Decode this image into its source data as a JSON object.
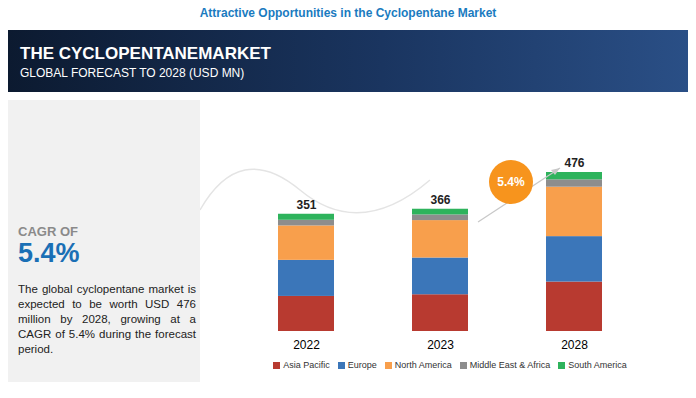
{
  "chart_data": {
    "type": "bar",
    "title": "Attractive Opportunities in the Cyclopentane Market",
    "banner_title": "THE CYCLOPENTANEMARKET",
    "subtitle": "GLOBAL FORECAST TO 2028 (USD MN)",
    "annotations": {
      "cagr_heading": "CAGR OF",
      "cagr_value": "5.4%",
      "description": "The global cyclopentane market is expected to be worth USD 476 million by 2028, growing at a CAGR of 5.4% during the forecast period.",
      "growth_bubble": "5.4%"
    },
    "stacked": true,
    "tick_labels": "x",
    "legend": "bottom",
    "categories": [
      "2022",
      "2023",
      "2028"
    ],
    "totals": [
      351,
      366,
      476
    ],
    "series": [
      {
        "name": "Asia Pacific",
        "color": "#b83a30",
        "values": [
          105,
          110,
          148
        ]
      },
      {
        "name": "Europe",
        "color": "#3b76b9",
        "values": [
          108,
          110,
          136
        ]
      },
      {
        "name": "North America",
        "color": "#f89f4c",
        "values": [
          103,
          112,
          148
        ]
      },
      {
        "name": "Middle East & Africa",
        "color": "#8d8d8d",
        "values": [
          17,
          17,
          22
        ]
      },
      {
        "name": "South America",
        "color": "#2eb35c",
        "values": [
          18,
          17,
          22
        ]
      }
    ]
  }
}
